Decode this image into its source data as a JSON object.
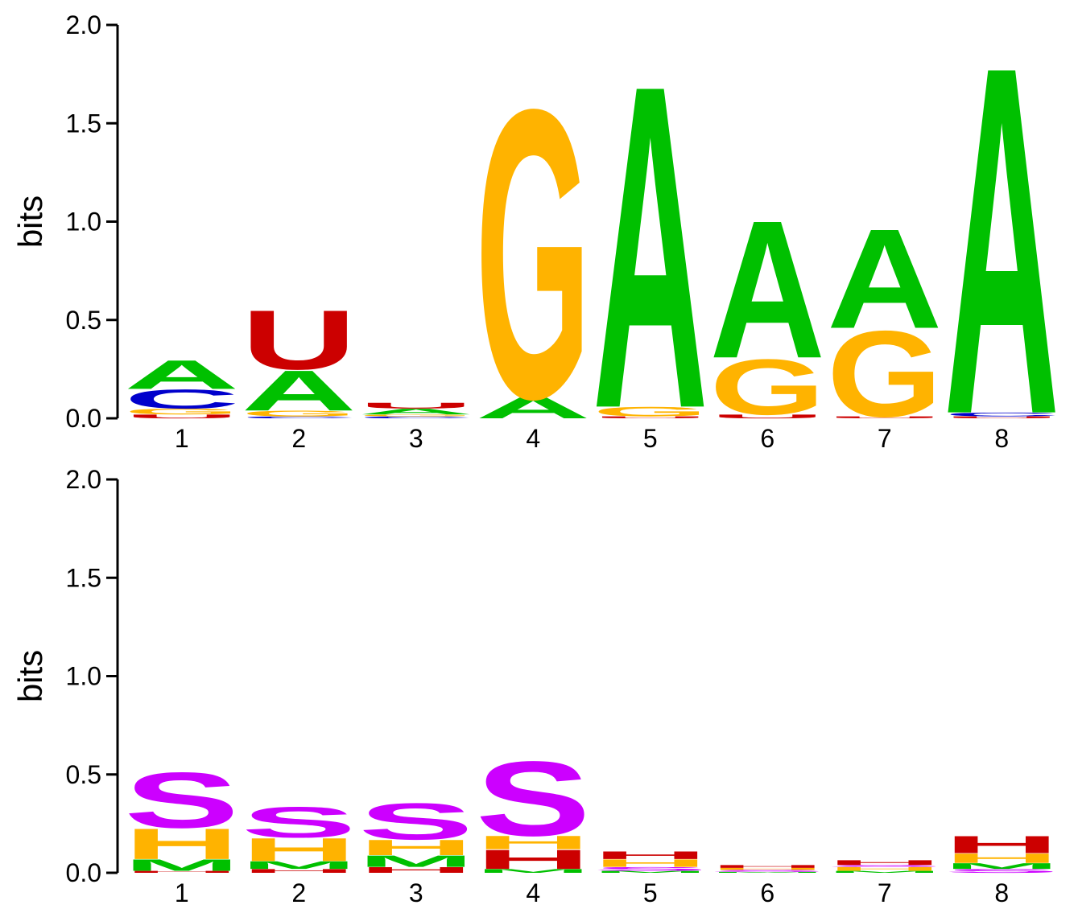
{
  "chart_data": [
    {
      "type": "sequence-logo",
      "ylabel": "bits",
      "ylim": [
        0,
        2.0
      ],
      "yticks": [
        "0.0",
        "0.5",
        "1.0",
        "1.5",
        "2.0"
      ],
      "positions": [
        "1",
        "2",
        "3",
        "4",
        "5",
        "6",
        "7",
        "8"
      ],
      "stacks": [
        [
          {
            "letter": "U",
            "bits": 0.02,
            "color": "#cc0000"
          },
          {
            "letter": "G",
            "bits": 0.03,
            "color": "#ffb300"
          },
          {
            "letter": "C",
            "bits": 0.1,
            "color": "#0000cc"
          },
          {
            "letter": "A",
            "bits": 0.15,
            "color": "#00c000"
          }
        ],
        [
          {
            "letter": "C",
            "bits": 0.01,
            "color": "#0000cc"
          },
          {
            "letter": "G",
            "bits": 0.03,
            "color": "#ffb300"
          },
          {
            "letter": "A",
            "bits": 0.21,
            "color": "#00c000"
          },
          {
            "letter": "U",
            "bits": 0.31,
            "color": "#cc0000"
          }
        ],
        [
          {
            "letter": "C",
            "bits": 0.01,
            "color": "#0000cc"
          },
          {
            "letter": "G",
            "bits": 0.01,
            "color": "#ffb300"
          },
          {
            "letter": "A",
            "bits": 0.03,
            "color": "#00c000"
          },
          {
            "letter": "U",
            "bits": 0.03,
            "color": "#cc0000"
          }
        ],
        [
          {
            "letter": "A",
            "bits": 0.11,
            "color": "#00c000"
          },
          {
            "letter": "G",
            "bits": 1.51,
            "color": "#ffb300"
          }
        ],
        [
          {
            "letter": "U",
            "bits": 0.01,
            "color": "#cc0000"
          },
          {
            "letter": "G",
            "bits": 0.05,
            "color": "#ffb300"
          },
          {
            "letter": "A",
            "bits": 1.69,
            "color": "#00c000"
          }
        ],
        [
          {
            "letter": "U",
            "bits": 0.02,
            "color": "#cc0000"
          },
          {
            "letter": "G",
            "bits": 0.29,
            "color": "#ffb300"
          },
          {
            "letter": "A",
            "bits": 0.72,
            "color": "#00c000"
          }
        ],
        [
          {
            "letter": "U",
            "bits": 0.01,
            "color": "#cc0000"
          },
          {
            "letter": "G",
            "bits": 0.45,
            "color": "#ffb300"
          },
          {
            "letter": "A",
            "bits": 0.52,
            "color": "#00c000"
          }
        ],
        [
          {
            "letter": "U",
            "bits": 0.01,
            "color": "#cc0000"
          },
          {
            "letter": "C",
            "bits": 0.02,
            "color": "#0000cc"
          },
          {
            "letter": "A",
            "bits": 1.82,
            "color": "#00c000"
          }
        ]
      ]
    },
    {
      "type": "sequence-logo",
      "ylabel": "bits",
      "ylim": [
        0,
        2.0
      ],
      "yticks": [
        "0.0",
        "0.5",
        "1.0",
        "1.5",
        "2.0"
      ],
      "positions": [
        "1",
        "2",
        "3",
        "4",
        "5",
        "6",
        "7",
        "8"
      ],
      "stacks": [
        [
          {
            "letter": "H",
            "bits": 0.01,
            "color": "#cc0000"
          },
          {
            "letter": "M",
            "bits": 0.06,
            "color": "#00c000"
          },
          {
            "letter": "H",
            "bits": 0.16,
            "color": "#ffb300"
          },
          {
            "letter": "S",
            "bits": 0.29,
            "color": "#cc00ff"
          }
        ],
        [
          {
            "letter": "H",
            "bits": 0.02,
            "color": "#cc0000"
          },
          {
            "letter": "M",
            "bits": 0.04,
            "color": "#00c000"
          },
          {
            "letter": "H",
            "bits": 0.12,
            "color": "#ffb300"
          },
          {
            "letter": "S",
            "bits": 0.16,
            "color": "#cc00ff"
          }
        ],
        [
          {
            "letter": "H",
            "bits": 0.03,
            "color": "#cc0000"
          },
          {
            "letter": "M",
            "bits": 0.06,
            "color": "#00c000"
          },
          {
            "letter": "H",
            "bits": 0.08,
            "color": "#ffb300"
          },
          {
            "letter": "S",
            "bits": 0.19,
            "color": "#cc00ff"
          }
        ],
        [
          {
            "letter": "M",
            "bits": 0.02,
            "color": "#00c000"
          },
          {
            "letter": "H",
            "bits": 0.1,
            "color": "#cc0000"
          },
          {
            "letter": "H",
            "bits": 0.07,
            "color": "#ffb300"
          },
          {
            "letter": "S",
            "bits": 0.39,
            "color": "#cc00ff"
          }
        ],
        [
          {
            "letter": "M",
            "bits": 0.01,
            "color": "#00c000"
          },
          {
            "letter": "S",
            "bits": 0.02,
            "color": "#cc00ff"
          },
          {
            "letter": "H",
            "bits": 0.04,
            "color": "#ffb300"
          },
          {
            "letter": "H",
            "bits": 0.04,
            "color": "#cc0000"
          }
        ],
        [
          {
            "letter": "M",
            "bits": 0.005,
            "color": "#00c000"
          },
          {
            "letter": "S",
            "bits": 0.01,
            "color": "#cc00ff"
          },
          {
            "letter": "H",
            "bits": 0.01,
            "color": "#ffb300"
          },
          {
            "letter": "H",
            "bits": 0.015,
            "color": "#cc0000"
          }
        ],
        [
          {
            "letter": "M",
            "bits": 0.01,
            "color": "#00c000"
          },
          {
            "letter": "H",
            "bits": 0.02,
            "color": "#ffb300"
          },
          {
            "letter": "S",
            "bits": 0.01,
            "color": "#cc00ff"
          },
          {
            "letter": "H",
            "bits": 0.025,
            "color": "#cc0000"
          }
        ],
        [
          {
            "letter": "S",
            "bits": 0.02,
            "color": "#cc00ff"
          },
          {
            "letter": "M",
            "bits": 0.03,
            "color": "#00c000"
          },
          {
            "letter": "H",
            "bits": 0.05,
            "color": "#ffb300"
          },
          {
            "letter": "H",
            "bits": 0.09,
            "color": "#cc0000"
          }
        ]
      ]
    }
  ]
}
